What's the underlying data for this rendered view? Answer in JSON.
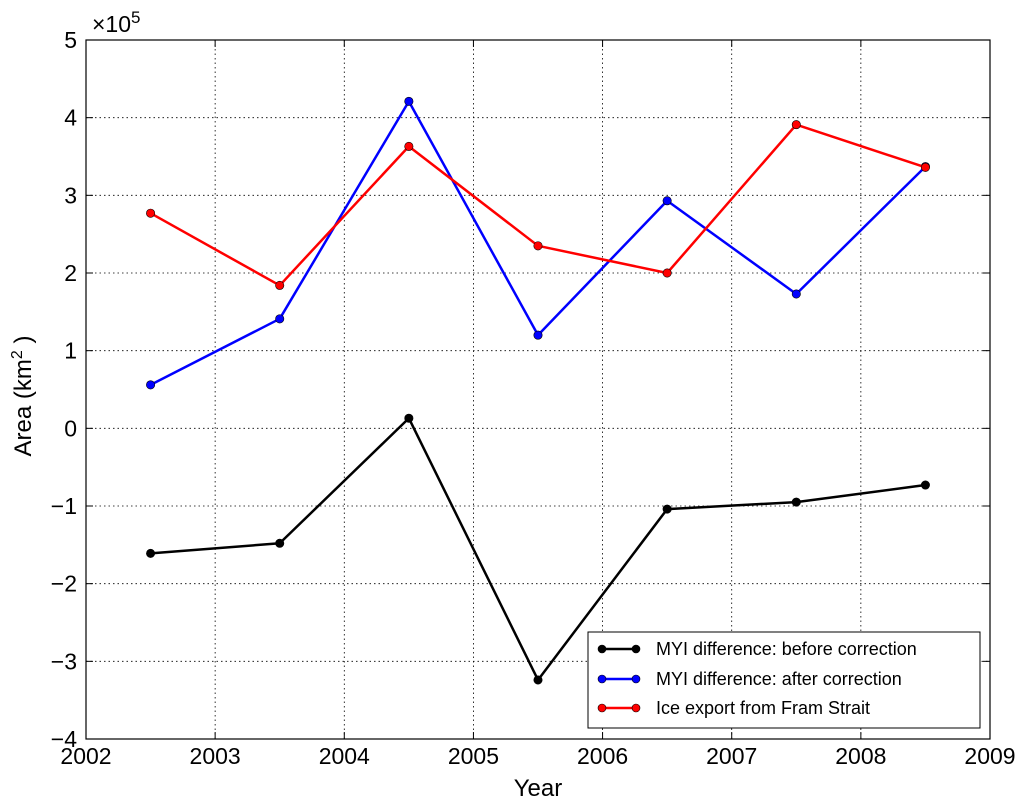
{
  "chart_data": {
    "type": "line",
    "title": "",
    "xlabel": "Year",
    "ylabel": "Area (km",
    "ylabel_sup": "2",
    "ylabel_end": " )",
    "scale_label": "×10",
    "scale_exponent": "5",
    "xlim": [
      2002,
      2009
    ],
    "ylim": [
      -4,
      5
    ],
    "x_ticks": [
      2002,
      2003,
      2004,
      2005,
      2006,
      2007,
      2008,
      2009
    ],
    "y_ticks": [
      -4,
      -3,
      -2,
      -1,
      0,
      1,
      2,
      3,
      4,
      5
    ],
    "x_tick_labels": [
      "2002",
      "2003",
      "2004",
      "2005",
      "2006",
      "2007",
      "2008",
      "2009"
    ],
    "y_tick_labels": [
      "−4",
      "−3",
      "−2",
      "−1",
      "0",
      "1",
      "2",
      "3",
      "4",
      "5"
    ],
    "grid": true,
    "legend_position": "lower-right",
    "x": [
      2002.5,
      2003.5,
      2004.5,
      2005.5,
      2006.5,
      2007.5,
      2008.5
    ],
    "series": [
      {
        "name": "MYI difference: before correction",
        "color": "#000000",
        "values": [
          -1.61,
          -1.48,
          0.13,
          -3.24,
          -1.04,
          -0.95,
          -0.73
        ]
      },
      {
        "name": "MYI difference: after correction",
        "color": "#0000ff",
        "values": [
          0.56,
          1.41,
          4.21,
          1.2,
          2.93,
          1.73,
          3.37
        ]
      },
      {
        "name": "Ice export from Fram Strait",
        "color": "#ff0000",
        "values": [
          2.77,
          1.84,
          3.63,
          2.35,
          2.0,
          3.91,
          3.36
        ]
      }
    ]
  }
}
